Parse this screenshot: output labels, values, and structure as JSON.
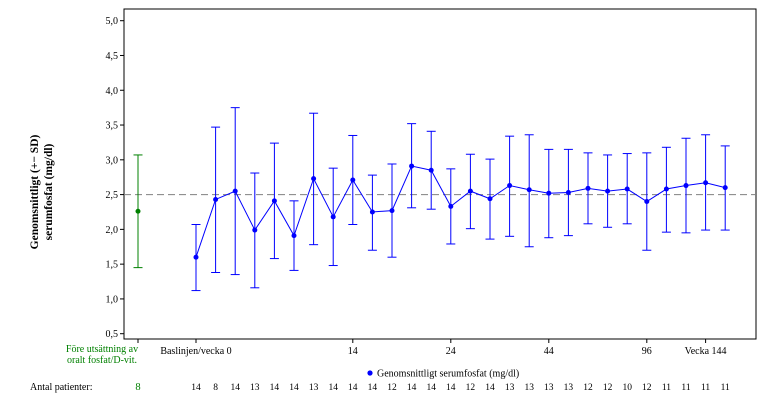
{
  "chart_data": {
    "type": "line",
    "ylabel_line1": "Genomsnittligt (+− SD)",
    "ylabel_line2": "serumfosfat (mg/dl)",
    "ylim": [
      0.5,
      5.0
    ],
    "yticks": [
      "0,5",
      "1,0",
      "1,5",
      "2,0",
      "2,5",
      "3,0",
      "3,5",
      "4,0",
      "4,5",
      "5,0"
    ],
    "reference_line": 2.5,
    "grid": false,
    "legend_position": "bottom-center",
    "colors": {
      "main": "#0000ff",
      "pre": "#008000",
      "reference": "#808080",
      "axis": "#000000"
    },
    "pre_treatment": {
      "label_line1": "Före utsättning av",
      "label_line2": "oralt fosfat/D-vit.",
      "mean": 2.26,
      "low": 1.45,
      "high": 3.07,
      "patients": "8"
    },
    "x_tick_labels": [
      {
        "index": 0,
        "text": "Baslinjen/vecka 0"
      },
      {
        "index": 8,
        "text": "14"
      },
      {
        "index": 13,
        "text": "24"
      },
      {
        "index": 18,
        "text": "44"
      },
      {
        "index": 23,
        "text": "96"
      },
      {
        "index": 26,
        "text": "Vecka 144"
      }
    ],
    "series": [
      {
        "name": "Genomsnittligt serumfosfat (mg/dl)",
        "mean": [
          1.6,
          2.43,
          2.55,
          1.99,
          2.41,
          1.91,
          2.73,
          2.18,
          2.71,
          2.25,
          2.27,
          2.91,
          2.85,
          2.33,
          2.55,
          2.44,
          2.63,
          2.57,
          2.52,
          2.53,
          2.59,
          2.55,
          2.58,
          2.4,
          2.58,
          2.63,
          2.67,
          2.6
        ],
        "low": [
          1.12,
          1.38,
          1.35,
          1.16,
          1.58,
          1.41,
          1.78,
          1.48,
          2.07,
          1.7,
          1.6,
          2.31,
          2.29,
          1.79,
          2.01,
          1.86,
          1.9,
          1.75,
          1.88,
          1.91,
          2.08,
          2.03,
          2.08,
          1.7,
          1.96,
          1.95,
          1.99,
          1.99
        ],
        "high": [
          2.07,
          3.47,
          3.75,
          2.81,
          3.24,
          2.41,
          3.67,
          2.88,
          3.35,
          2.78,
          2.94,
          3.52,
          3.41,
          2.87,
          3.08,
          3.01,
          3.34,
          3.36,
          3.15,
          3.15,
          3.1,
          3.07,
          3.09,
          3.1,
          3.18,
          3.31,
          3.36,
          3.2
        ]
      }
    ],
    "patients_label": "Antal patienter:",
    "patients": [
      "14",
      "8",
      "14",
      "13",
      "14",
      "14",
      "13",
      "14",
      "14",
      "14",
      "12",
      "14",
      "14",
      "14",
      "12",
      "14",
      "13",
      "13",
      "13",
      "13",
      "12",
      "12",
      "10",
      "12",
      "11",
      "11",
      "11",
      "11"
    ]
  }
}
